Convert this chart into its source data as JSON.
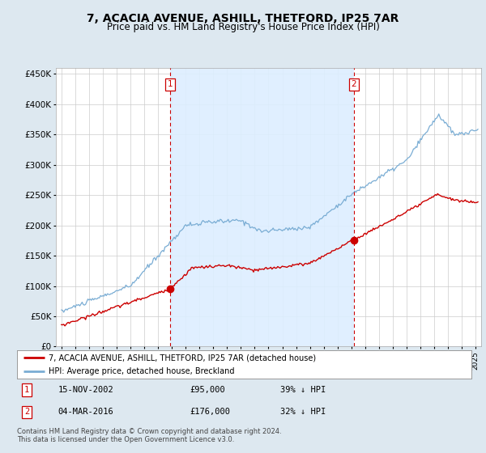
{
  "title": "7, ACACIA AVENUE, ASHILL, THETFORD, IP25 7AR",
  "subtitle": "Price paid vs. HM Land Registry's House Price Index (HPI)",
  "red_label": "7, ACACIA AVENUE, ASHILL, THETFORD, IP25 7AR (detached house)",
  "blue_label": "HPI: Average price, detached house, Breckland",
  "annotation1": {
    "num": "1",
    "date": "15-NOV-2002",
    "price": "£95,000",
    "pct": "39% ↓ HPI"
  },
  "annotation2": {
    "num": "2",
    "date": "04-MAR-2016",
    "price": "£176,000",
    "pct": "32% ↓ HPI"
  },
  "vline1_year": 2002.875,
  "vline2_year": 2016.167,
  "sale1_year": 2002.875,
  "sale1_value": 95000,
  "sale2_year": 2016.167,
  "sale2_value": 176000,
  "ylim": [
    0,
    460000
  ],
  "yticks": [
    0,
    50000,
    100000,
    150000,
    200000,
    250000,
    300000,
    350000,
    400000,
    450000
  ],
  "footer1": "Contains HM Land Registry data © Crown copyright and database right 2024.",
  "footer2": "This data is licensed under the Open Government Licence v3.0.",
  "bg_color": "#dde8f0",
  "plot_bg_color": "#ffffff",
  "shade_color": "#ddeeff",
  "red_color": "#cc0000",
  "blue_color": "#7aadd4",
  "grid_color": "#cccccc",
  "title_fontsize": 10,
  "subtitle_fontsize": 8.5
}
